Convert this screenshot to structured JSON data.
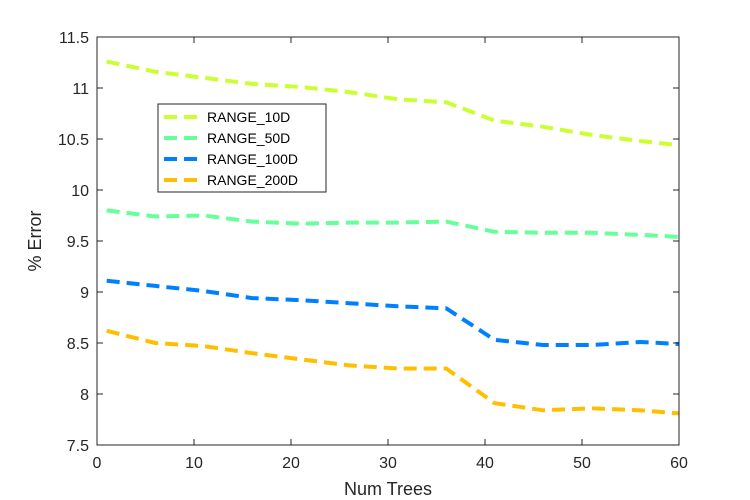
{
  "chart_data": {
    "type": "line",
    "xlabel": "Num Trees",
    "ylabel": "% Error",
    "xlim": [
      0,
      60
    ],
    "ylim": [
      7.5,
      11.5
    ],
    "xticks": [
      0,
      10,
      20,
      30,
      40,
      50,
      60
    ],
    "yticks": [
      7.5,
      8,
      8.5,
      9,
      9.5,
      10,
      10.5,
      11,
      11.5
    ],
    "grid": false,
    "legend_location": "upper-left",
    "x": [
      1,
      6,
      11,
      16,
      21,
      26,
      31,
      36,
      41,
      46,
      51,
      56,
      60
    ],
    "series": [
      {
        "name": "RANGE_10D",
        "color": "#ccff33",
        "values": [
          11.26,
          11.16,
          11.1,
          11.04,
          11.01,
          10.96,
          10.89,
          10.86,
          10.68,
          10.62,
          10.54,
          10.48,
          10.44
        ]
      },
      {
        "name": "RANGE_50D",
        "color": "#66ff99",
        "values": [
          9.8,
          9.74,
          9.75,
          9.69,
          9.67,
          9.68,
          9.68,
          9.69,
          9.59,
          9.58,
          9.58,
          9.56,
          9.54
        ]
      },
      {
        "name": "RANGE_100D",
        "color": "#0080ff",
        "values": [
          9.11,
          9.06,
          9.01,
          8.94,
          8.92,
          8.89,
          8.86,
          8.84,
          8.53,
          8.48,
          8.48,
          8.51,
          8.49
        ]
      },
      {
        "name": "RANGE_200D",
        "color": "#ffbf00",
        "values": [
          8.62,
          8.5,
          8.47,
          8.4,
          8.34,
          8.28,
          8.25,
          8.25,
          7.91,
          7.84,
          7.86,
          7.84,
          7.81
        ]
      }
    ]
  }
}
